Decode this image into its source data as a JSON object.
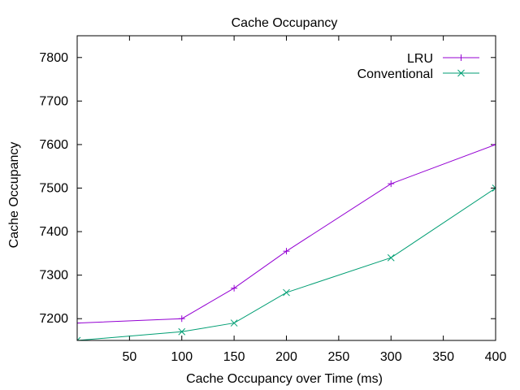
{
  "chart_data": {
    "type": "line",
    "title": "Cache Occupancy",
    "xlabel": "Cache Occupancy over Time (ms)",
    "ylabel": "Cache Occupancy",
    "xlim": [
      0,
      400
    ],
    "ylim": [
      7150,
      7850
    ],
    "x_ticks": [
      50,
      100,
      150,
      200,
      250,
      300,
      350,
      400
    ],
    "y_ticks": [
      7200,
      7300,
      7400,
      7500,
      7600,
      7700,
      7800
    ],
    "grid": false,
    "legend_position": "top-right",
    "series": [
      {
        "name": "LRU",
        "color": "#9400d3",
        "marker": "plus",
        "x": [
          0,
          100,
          150,
          200,
          300,
          400
        ],
        "y": [
          7190,
          7200,
          7270,
          7355,
          7510,
          7600
        ]
      },
      {
        "name": "Conventional",
        "color": "#009e73",
        "marker": "cross",
        "x": [
          0,
          100,
          150,
          200,
          300,
          400
        ],
        "y": [
          7150,
          7170,
          7190,
          7260,
          7340,
          7500
        ]
      }
    ]
  }
}
